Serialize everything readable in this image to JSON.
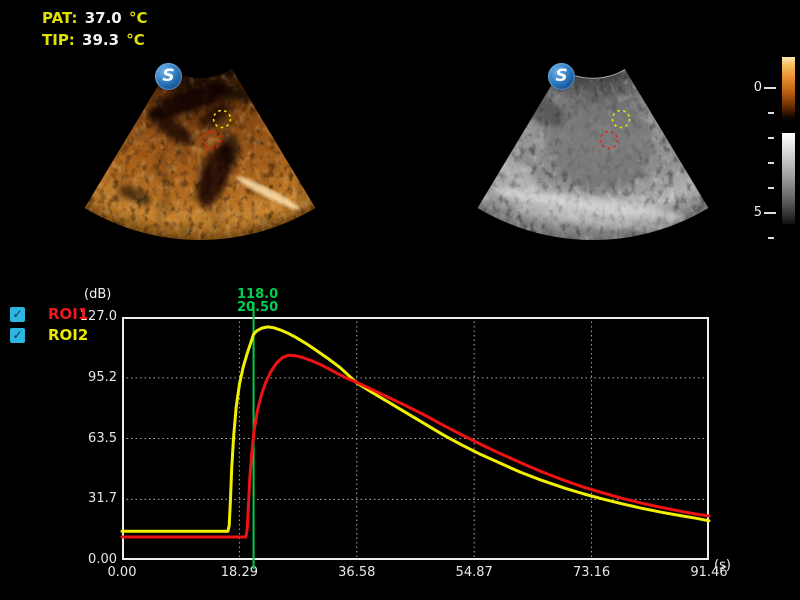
{
  "temperatures": {
    "rows": [
      {
        "label": "PAT:",
        "value": "37.0",
        "unit": "°C"
      },
      {
        "label": "TIP:",
        "value": "39.3",
        "unit": "°C"
      }
    ]
  },
  "branding": {
    "logo_letter": "S"
  },
  "depth_scale": {
    "ticks": [
      {
        "v": 0,
        "label": "0"
      },
      {
        "v": 1
      },
      {
        "v": 2
      },
      {
        "v": 3
      },
      {
        "v": 4
      },
      {
        "v": 5,
        "label": "5"
      },
      {
        "v": 6
      }
    ]
  },
  "legend": {
    "checkbox_color": "#2eb6e0",
    "check_glyph": "✓",
    "items": [
      {
        "label": "ROI1",
        "color": "#f01818",
        "checked": true
      },
      {
        "label": "ROI2",
        "color": "#e8e800",
        "checked": true
      }
    ]
  },
  "chart_data": {
    "type": "line",
    "title": "",
    "ylabel": "(dB)",
    "xlabel": "(s)",
    "xlim": [
      0,
      91.46
    ],
    "ylim": [
      0,
      127
    ],
    "grid": "dotted",
    "legend_position": "left",
    "yticks": [
      {
        "v": 127,
        "label": "127.0"
      },
      {
        "v": 95.2,
        "label": "95.2"
      },
      {
        "v": 63.5,
        "label": "63.5"
      },
      {
        "v": 31.7,
        "label": "31.7"
      },
      {
        "v": 0,
        "label": "0.00"
      }
    ],
    "xticks": [
      {
        "v": 0,
        "label": "0.00"
      },
      {
        "v": 18.29,
        "label": "18.29"
      },
      {
        "v": 36.58,
        "label": "36.58"
      },
      {
        "v": 54.87,
        "label": "54.87"
      },
      {
        "v": 73.16,
        "label": "73.16"
      },
      {
        "v": 91.46,
        "label": "91.46"
      }
    ],
    "cursor": {
      "t": 20.5,
      "value_label": "118.0",
      "time_label": "20.50",
      "color": "#00cc44",
      "text_color": "#00d050"
    },
    "series": [
      {
        "name": "ROI1",
        "color": "#ee1212",
        "points": [
          [
            0,
            12
          ],
          [
            19.3,
            12
          ],
          [
            19.5,
            16
          ],
          [
            19.7,
            28
          ],
          [
            19.9,
            42
          ],
          [
            20.2,
            55
          ],
          [
            20.6,
            68
          ],
          [
            21.1,
            78
          ],
          [
            21.7,
            86
          ],
          [
            22.4,
            93
          ],
          [
            23.2,
            98.5
          ],
          [
            24.1,
            103
          ],
          [
            25.0,
            105.8
          ],
          [
            25.9,
            107
          ],
          [
            27.0,
            106.8
          ],
          [
            28.2,
            105.8
          ],
          [
            29.5,
            104.2
          ],
          [
            31.0,
            102
          ],
          [
            33.0,
            98.5
          ],
          [
            35.0,
            95
          ],
          [
            36.6,
            92.8
          ],
          [
            39.0,
            89
          ],
          [
            41.5,
            85
          ],
          [
            44.0,
            81
          ],
          [
            47.0,
            76
          ],
          [
            50.0,
            70.5
          ],
          [
            53.0,
            65.3
          ],
          [
            56.0,
            60.3
          ],
          [
            59.0,
            55.5
          ],
          [
            62.0,
            51
          ],
          [
            65.5,
            46
          ],
          [
            69.0,
            41.5
          ],
          [
            72.0,
            38
          ],
          [
            75.0,
            35
          ],
          [
            78.0,
            32.2
          ],
          [
            81.0,
            29.7
          ],
          [
            84.0,
            27.5
          ],
          [
            87.0,
            25.5
          ],
          [
            89.5,
            24
          ],
          [
            91.46,
            23
          ]
        ]
      },
      {
        "name": "ROI2",
        "color": "#f0f000",
        "points": [
          [
            0,
            15
          ],
          [
            16.5,
            15
          ],
          [
            16.7,
            18
          ],
          [
            16.9,
            32
          ],
          [
            17.1,
            48
          ],
          [
            17.4,
            65
          ],
          [
            17.8,
            80
          ],
          [
            18.3,
            92
          ],
          [
            18.9,
            101
          ],
          [
            19.5,
            108
          ],
          [
            20.0,
            113
          ],
          [
            20.5,
            118
          ],
          [
            21.0,
            119.8
          ],
          [
            21.8,
            121.2
          ],
          [
            22.7,
            121.8
          ],
          [
            23.6,
            121.4
          ],
          [
            24.6,
            120.3
          ],
          [
            25.7,
            118.8
          ],
          [
            27.0,
            116.5
          ],
          [
            28.5,
            113.5
          ],
          [
            30.0,
            110.2
          ],
          [
            32.0,
            105.5
          ],
          [
            34.0,
            100.5
          ],
          [
            36.6,
            92.5
          ],
          [
            39.0,
            87.5
          ],
          [
            41.5,
            82.5
          ],
          [
            44.0,
            77.5
          ],
          [
            47.0,
            71.5
          ],
          [
            50.0,
            65.5
          ],
          [
            53.0,
            60
          ],
          [
            56.0,
            55
          ],
          [
            59.0,
            50.5
          ],
          [
            62.0,
            46
          ],
          [
            65.5,
            41.5
          ],
          [
            69.0,
            37.5
          ],
          [
            72.0,
            34.5
          ],
          [
            75.0,
            31.8
          ],
          [
            78.0,
            29.3
          ],
          [
            81.0,
            27
          ],
          [
            84.0,
            25
          ],
          [
            87.0,
            23.2
          ],
          [
            89.5,
            21.8
          ],
          [
            91.46,
            20.5
          ]
        ]
      }
    ]
  }
}
